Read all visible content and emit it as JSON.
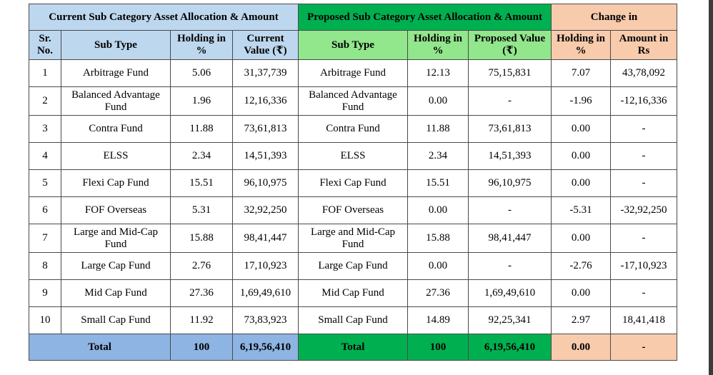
{
  "headers": {
    "current_group": "Current Sub Category Asset Allocation & Amount",
    "proposed_group": "Proposed Sub Category Asset Allocation & Amount",
    "change_group": "Change in",
    "sr_no": "Sr. No.",
    "sub_type": "Sub Type",
    "holding_pct": "Holding in %",
    "current_value": "Current Value (₹)",
    "proposed_value": "Proposed Value (₹)",
    "change_holding": "Holding in %",
    "change_amount": "Amount in Rs"
  },
  "rows": [
    {
      "sr": "1",
      "cur_type": "Arbitrage Fund",
      "cur_hold": "5.06",
      "cur_val": "31,37,739",
      "prop_type": "Arbitrage Fund",
      "prop_hold": "12.13",
      "prop_val": "75,15,831",
      "chg_hold": "7.07",
      "chg_amt": "43,78,092"
    },
    {
      "sr": "2",
      "cur_type": "Balanced Advantage Fund",
      "cur_hold": "1.96",
      "cur_val": "12,16,336",
      "prop_type": "Balanced Advantage Fund",
      "prop_hold": "0.00",
      "prop_val": "-",
      "chg_hold": "-1.96",
      "chg_amt": "-12,16,336"
    },
    {
      "sr": "3",
      "cur_type": "Contra Fund",
      "cur_hold": "11.88",
      "cur_val": "73,61,813",
      "prop_type": "Contra Fund",
      "prop_hold": "11.88",
      "prop_val": "73,61,813",
      "chg_hold": "0.00",
      "chg_amt": "-"
    },
    {
      "sr": "4",
      "cur_type": "ELSS",
      "cur_hold": "2.34",
      "cur_val": "14,51,393",
      "prop_type": "ELSS",
      "prop_hold": "2.34",
      "prop_val": "14,51,393",
      "chg_hold": "0.00",
      "chg_amt": "-"
    },
    {
      "sr": "5",
      "cur_type": "Flexi Cap Fund",
      "cur_hold": "15.51",
      "cur_val": "96,10,975",
      "prop_type": "Flexi Cap Fund",
      "prop_hold": "15.51",
      "prop_val": "96,10,975",
      "chg_hold": "0.00",
      "chg_amt": "-"
    },
    {
      "sr": "6",
      "cur_type": "FOF Overseas",
      "cur_hold": "5.31",
      "cur_val": "32,92,250",
      "prop_type": "FOF Overseas",
      "prop_hold": "0.00",
      "prop_val": "-",
      "chg_hold": "-5.31",
      "chg_amt": "-32,92,250"
    },
    {
      "sr": "7",
      "cur_type": "Large and Mid-Cap Fund",
      "cur_hold": "15.88",
      "cur_val": "98,41,447",
      "prop_type": "Large and Mid-Cap Fund",
      "prop_hold": "15.88",
      "prop_val": "98,41,447",
      "chg_hold": "0.00",
      "chg_amt": "-"
    },
    {
      "sr": "8",
      "cur_type": "Large Cap Fund",
      "cur_hold": "2.76",
      "cur_val": "17,10,923",
      "prop_type": "Large Cap Fund",
      "prop_hold": "0.00",
      "prop_val": "-",
      "chg_hold": "-2.76",
      "chg_amt": "-17,10,923"
    },
    {
      "sr": "9",
      "cur_type": "Mid Cap Fund",
      "cur_hold": "27.36",
      "cur_val": "1,69,49,610",
      "prop_type": "Mid Cap Fund",
      "prop_hold": "27.36",
      "prop_val": "1,69,49,610",
      "chg_hold": "0.00",
      "chg_amt": "-"
    },
    {
      "sr": "10",
      "cur_type": "Small Cap Fund",
      "cur_hold": "11.92",
      "cur_val": "73,83,923",
      "prop_type": "Small Cap Fund",
      "prop_hold": "14.89",
      "prop_val": "92,25,341",
      "chg_hold": "2.97",
      "chg_amt": "18,41,418"
    }
  ],
  "totals": {
    "cur_label": "Total",
    "cur_hold": "100",
    "cur_val": "6,19,56,410",
    "prop_label": "Total",
    "prop_hold": "100",
    "prop_val": "6,19,56,410",
    "chg_hold": "0.00",
    "chg_amt": "-"
  },
  "colors": {
    "current_header": "#bdd7ee",
    "current_total": "#8db4e2",
    "proposed_header": "#00b050",
    "proposed_subheader": "#92e68c",
    "change_header": "#f8cbad"
  }
}
